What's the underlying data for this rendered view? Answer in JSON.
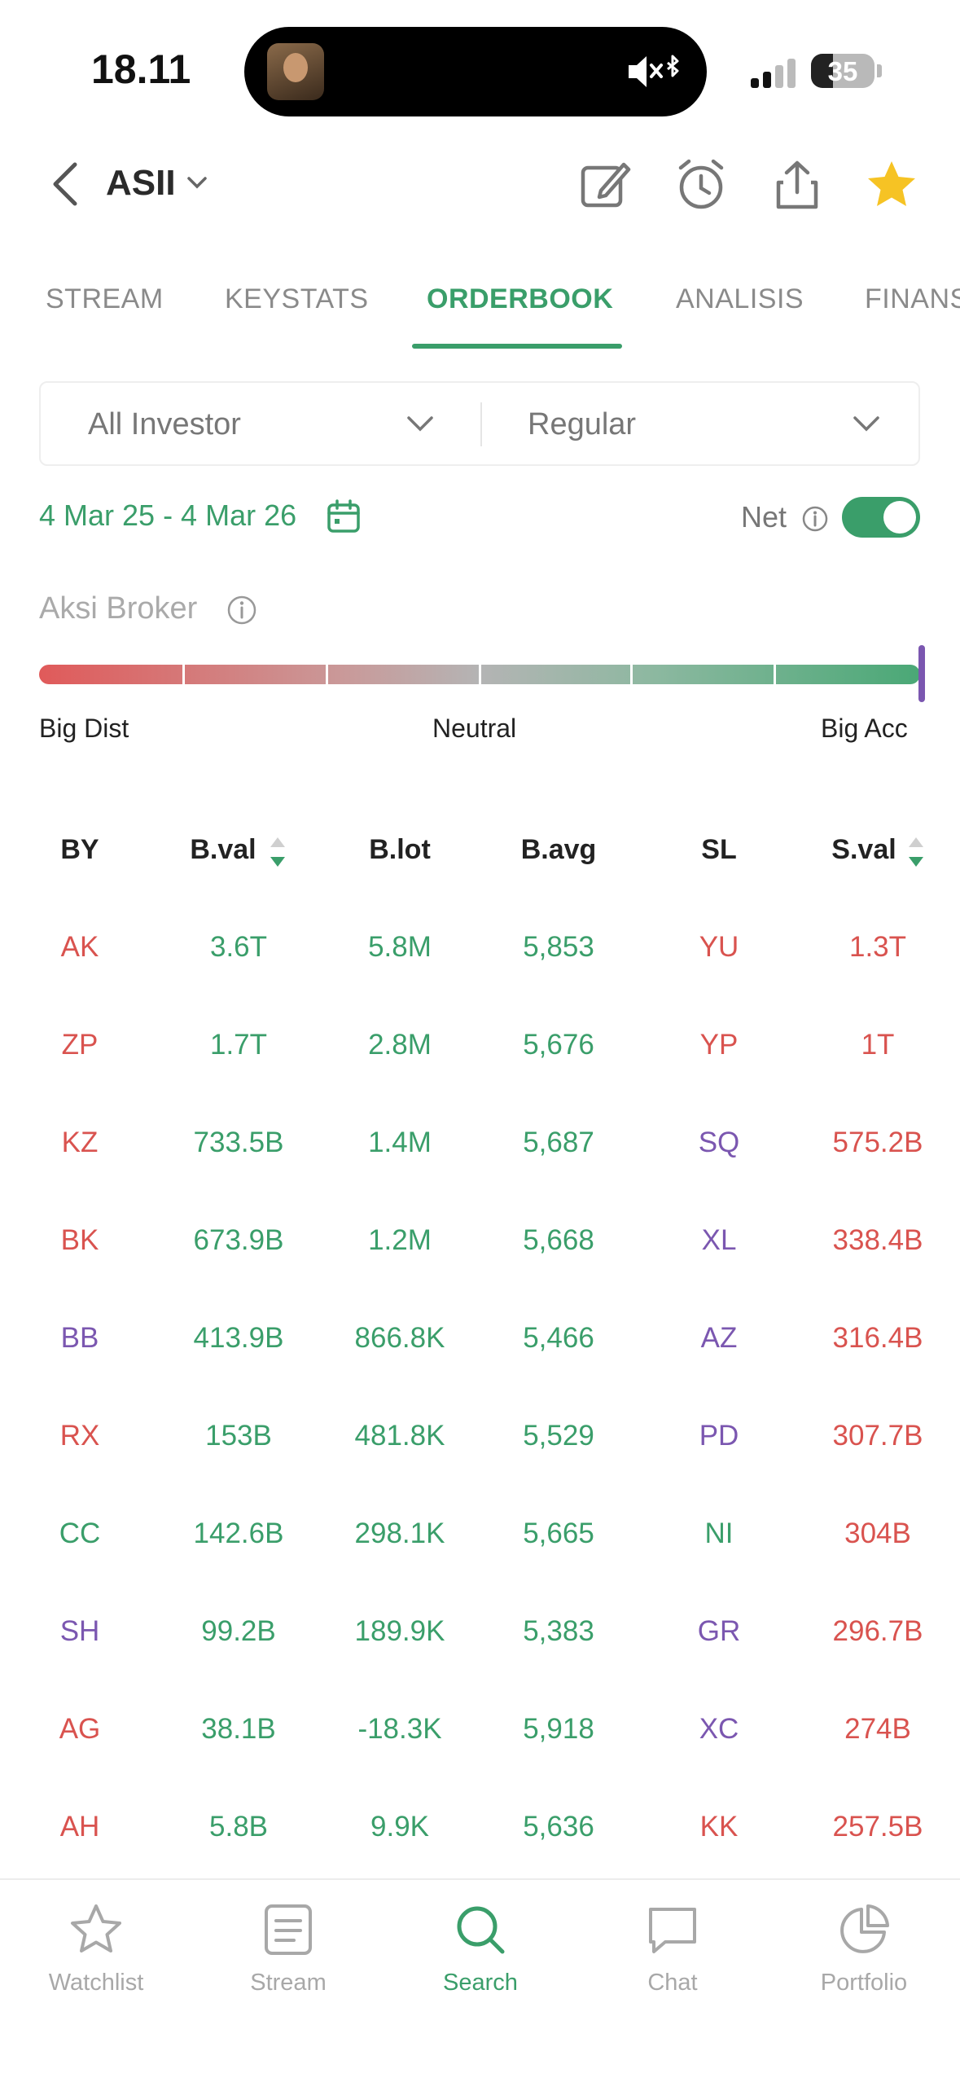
{
  "status_bar": {
    "time": "18.11",
    "battery": "35"
  },
  "header": {
    "ticker": "ASII"
  },
  "tabs": [
    {
      "label": "STREAM",
      "active": false
    },
    {
      "label": "KEYSTATS",
      "active": false
    },
    {
      "label": "ORDERBOOK",
      "active": true
    },
    {
      "label": "ANALISIS",
      "active": false
    },
    {
      "label": "FINANS",
      "active": false
    }
  ],
  "filters": {
    "investor": "All Investor",
    "market": "Regular"
  },
  "date_range": "4 Mar 25 - 4 Mar 26",
  "net": {
    "label": "Net",
    "enabled": true
  },
  "broker_action": {
    "title": "Aksi Broker",
    "left_label": "Big Dist",
    "mid_label": "Neutral",
    "right_label": "Big Acc",
    "level": 1.0
  },
  "colors": {
    "green": "#3a9e6a",
    "red": "#d9534f",
    "purple": "#7b57b0"
  },
  "table": {
    "headers": {
      "by": "BY",
      "bval": "B.val",
      "blot": "B.lot",
      "bavg": "B.avg",
      "sl": "SL",
      "sval": "S.val"
    },
    "rows": [
      {
        "by": "AK",
        "by_color": "red",
        "bval": "3.6T",
        "blot": "5.8M",
        "bavg": "5,853",
        "sl": "YU",
        "sl_color": "red",
        "sval": "1.3T"
      },
      {
        "by": "ZP",
        "by_color": "red",
        "bval": "1.7T",
        "blot": "2.8M",
        "bavg": "5,676",
        "sl": "YP",
        "sl_color": "red",
        "sval": "1T"
      },
      {
        "by": "KZ",
        "by_color": "red",
        "bval": "733.5B",
        "blot": "1.4M",
        "bavg": "5,687",
        "sl": "SQ",
        "sl_color": "purple",
        "sval": "575.2B"
      },
      {
        "by": "BK",
        "by_color": "red",
        "bval": "673.9B",
        "blot": "1.2M",
        "bavg": "5,668",
        "sl": "XL",
        "sl_color": "purple",
        "sval": "338.4B"
      },
      {
        "by": "BB",
        "by_color": "purple",
        "bval": "413.9B",
        "blot": "866.8K",
        "bavg": "5,466",
        "sl": "AZ",
        "sl_color": "purple",
        "sval": "316.4B"
      },
      {
        "by": "RX",
        "by_color": "red",
        "bval": "153B",
        "blot": "481.8K",
        "bavg": "5,529",
        "sl": "PD",
        "sl_color": "purple",
        "sval": "307.7B"
      },
      {
        "by": "CC",
        "by_color": "green",
        "bval": "142.6B",
        "blot": "298.1K",
        "bavg": "5,665",
        "sl": "NI",
        "sl_color": "green",
        "sval": "304B"
      },
      {
        "by": "SH",
        "by_color": "purple",
        "bval": "99.2B",
        "blot": "189.9K",
        "bavg": "5,383",
        "sl": "GR",
        "sl_color": "purple",
        "sval": "296.7B"
      },
      {
        "by": "AG",
        "by_color": "red",
        "bval": "38.1B",
        "blot": "-18.3K",
        "bavg": "5,918",
        "sl": "XC",
        "sl_color": "purple",
        "sval": "274B"
      },
      {
        "by": "AH",
        "by_color": "red",
        "bval": "5.8B",
        "blot": "9.9K",
        "bavg": "5,636",
        "sl": "KK",
        "sl_color": "red",
        "sval": "257.5B"
      }
    ]
  },
  "bottom_nav": [
    {
      "label": "Watchlist",
      "icon": "star-outline-icon",
      "active": false
    },
    {
      "label": "Stream",
      "icon": "document-icon",
      "active": false
    },
    {
      "label": "Search",
      "icon": "search-icon",
      "active": true
    },
    {
      "label": "Chat",
      "icon": "chat-bubble-icon",
      "active": false
    },
    {
      "label": "Portfolio",
      "icon": "pie-chart-icon",
      "active": false
    }
  ]
}
